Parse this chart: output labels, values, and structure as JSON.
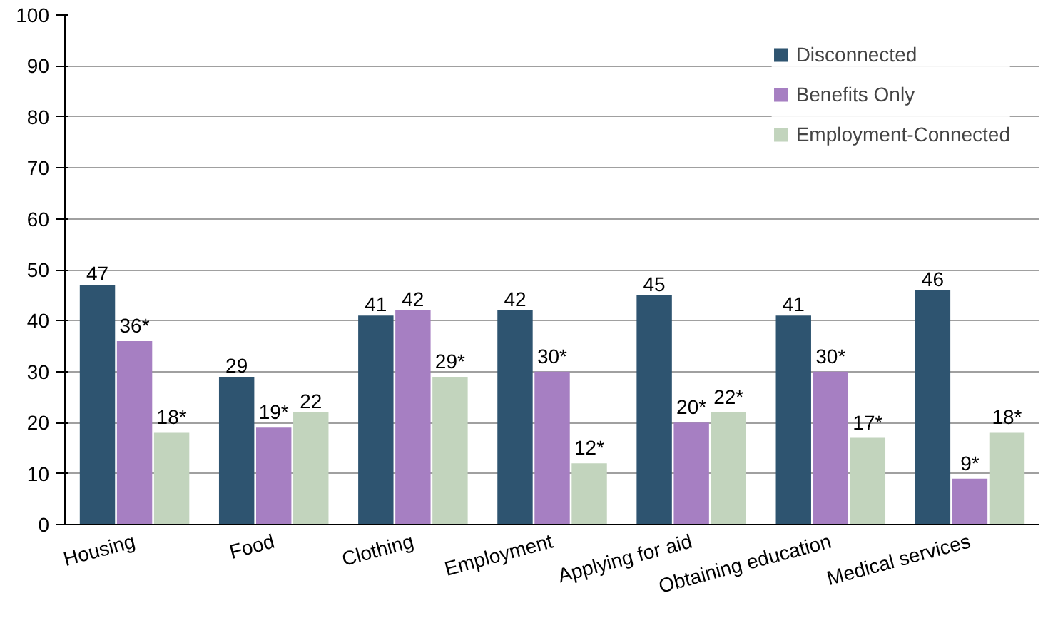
{
  "chart_data": {
    "type": "bar",
    "categories": [
      "Housing",
      "Food",
      "Clothing",
      "Employment",
      "Applying for aid",
      "Obtaining education",
      "Medical services"
    ],
    "series": [
      {
        "name": "Disconnected",
        "color": "#2e5470",
        "values": [
          47,
          29,
          41,
          42,
          45,
          41,
          46
        ],
        "value_labels": [
          "47",
          "29",
          "41",
          "42",
          "45",
          "41",
          "46"
        ]
      },
      {
        "name": "Benefits Only",
        "color": "#a67fc2",
        "values": [
          36,
          19,
          42,
          30,
          20,
          30,
          9
        ],
        "value_labels": [
          "36*",
          "19*",
          "42",
          "30*",
          "20*",
          "30*",
          "9*"
        ]
      },
      {
        "name": "Employment-Connected",
        "color": "#c2d4bd",
        "values": [
          18,
          22,
          29,
          12,
          22,
          17,
          18
        ],
        "value_labels": [
          "18*",
          "22",
          "29*",
          "12*",
          "22*",
          "17*",
          "18*"
        ]
      }
    ],
    "ylim": [
      0,
      100
    ],
    "yticks": [
      0,
      10,
      20,
      30,
      40,
      50,
      60,
      70,
      80,
      90,
      100
    ],
    "grid": "y",
    "legend": "top right"
  }
}
